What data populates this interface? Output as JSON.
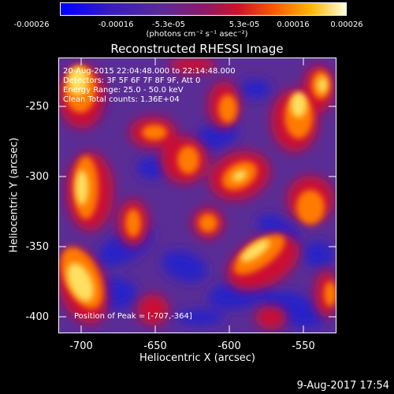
{
  "colorbar": {
    "ticks": [
      "-0.00026",
      "-0.00016",
      "-5.3e-05",
      "5.3e-05",
      "0.00016",
      "0.00026"
    ],
    "units": "(photons cm⁻² s⁻¹ asec⁻²)"
  },
  "plot": {
    "title": "Reconstructed RHESSI Image",
    "info_lines": [
      "20-Aug-2015 22:04:48.000 to 22:14:48.000",
      "Detectors: 3F 5F 6F 7F 8F 9F, Att 0",
      "Energy Range: 25.0 - 50.0 keV",
      "Clean    Total counts: 1.36E+04"
    ],
    "peak_text": "Position of Peak = [-707,-364]",
    "xlabel": "Heliocentric X (arcsec)",
    "ylabel": "Heliocentric Y (arcsec)",
    "xticks": [
      "-700",
      "-650",
      "-600",
      "-550"
    ],
    "yticks": [
      "-250",
      "-300",
      "-350",
      "-400"
    ]
  },
  "timestamp": "9-Aug-2017 17:54",
  "chart_data": {
    "type": "heatmap",
    "title": "Reconstructed RHESSI Image",
    "xlabel": "Heliocentric X (arcsec)",
    "ylabel": "Heliocentric Y (arcsec)",
    "xlim": [
      -715,
      -528
    ],
    "ylim": [
      -410,
      -225
    ],
    "colorbar_range": [
      -0.00026,
      0.00026
    ],
    "peak": [
      -707,
      -364
    ]
  }
}
